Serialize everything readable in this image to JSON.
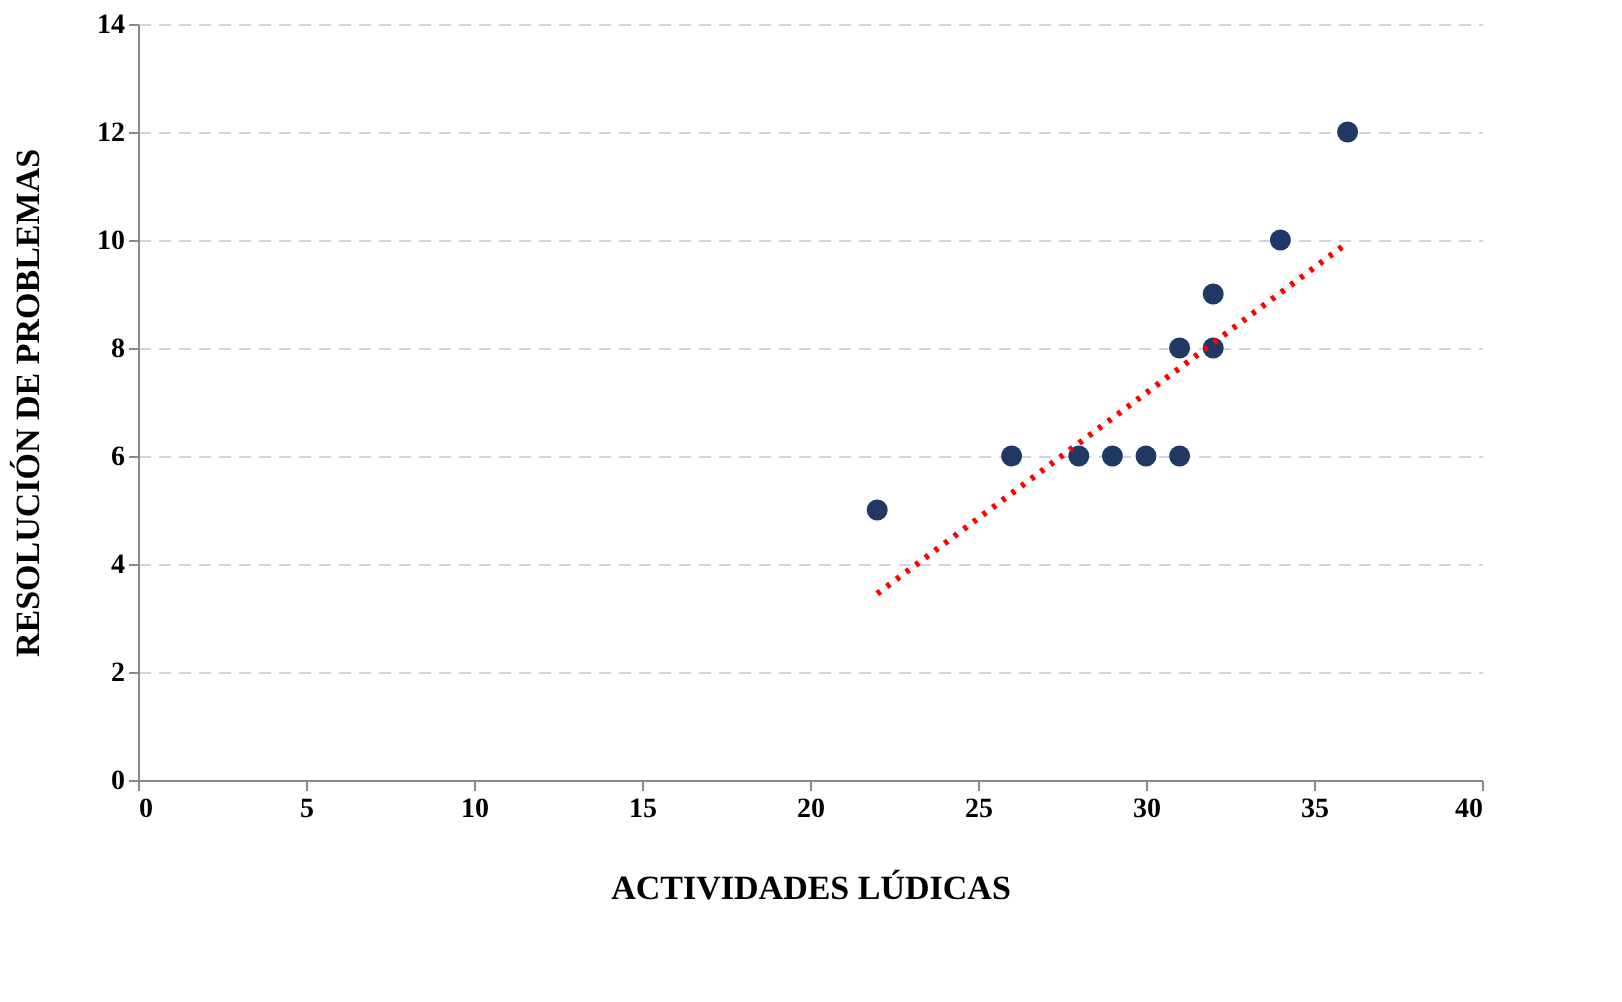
{
  "chart_data": {
    "type": "scatter",
    "xlabel": "ACTIVIDADES LÚDICAS",
    "ylabel": "RESOLUCIÓN DE PROBLEMAS",
    "xlim": [
      0,
      40
    ],
    "xticks": [
      0,
      5,
      10,
      15,
      20,
      25,
      30,
      35,
      40
    ],
    "ylim": [
      0,
      14
    ],
    "yticks": [
      0,
      2,
      4,
      6,
      8,
      10,
      12,
      14
    ],
    "grid": "y",
    "marker": "circle",
    "series": [
      {
        "color": "#1f3864",
        "x": [
          22,
          26,
          28,
          29,
          30,
          31,
          31,
          32,
          32,
          34,
          36
        ],
        "values": [
          5,
          6,
          6,
          6,
          6,
          6,
          8,
          8,
          9,
          10,
          12
        ]
      },
      {
        "type": "line",
        "color": "#ff0000",
        "line_style": "dotted",
        "marker": "none",
        "x": [
          22,
          36
        ],
        "values": [
          3.45,
          9.95
        ]
      }
    ]
  }
}
